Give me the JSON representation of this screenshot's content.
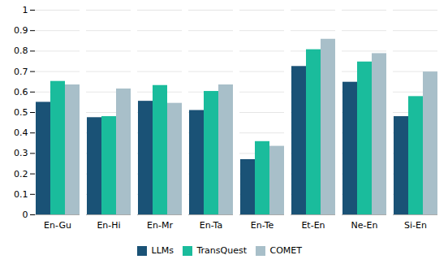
{
  "chart_data": {
    "type": "bar",
    "categories": [
      "En-Gu",
      "En-Hi",
      "En-Mr",
      "En-Ta",
      "En-Te",
      "Et-En",
      "Ne-En",
      "Si-En"
    ],
    "series": [
      {
        "name": "LLMs",
        "color": "#1a5276",
        "values": [
          0.55,
          0.475,
          0.555,
          0.51,
          0.27,
          0.725,
          0.648,
          0.48
        ]
      },
      {
        "name": "TransQuest",
        "color": "#1abc9c",
        "values": [
          0.652,
          0.48,
          0.632,
          0.603,
          0.358,
          0.807,
          0.747,
          0.578
        ]
      },
      {
        "name": "COMET",
        "color": "#a8bfc9",
        "values": [
          0.635,
          0.615,
          0.545,
          0.635,
          0.335,
          0.858,
          0.788,
          0.698
        ]
      }
    ],
    "ylim": [
      0,
      1.0
    ],
    "yticks": [
      0,
      0.1,
      0.2,
      0.3,
      0.4,
      0.5,
      0.6,
      0.7,
      0.8,
      0.9,
      1
    ],
    "grid": true,
    "legend": "bottom"
  }
}
